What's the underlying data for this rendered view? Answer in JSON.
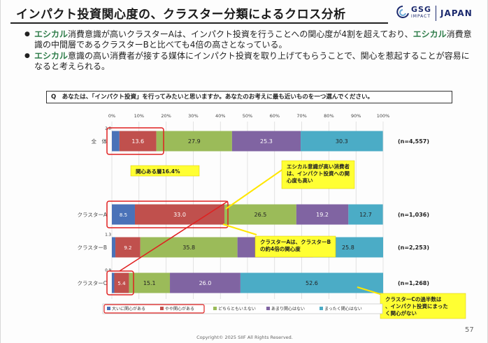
{
  "slide": {
    "title": "インパクト投資関心度の、クラスター分類によるクロス分析",
    "logo_gsg": "GSG",
    "logo_impact": "IMPACT",
    "logo_japan": "JAPAN",
    "bullets": [
      {
        "hl1": "エシカル",
        "t1": "消費意識が高いクラスターAは、インパクト投資を行うことへの関心度が4割を超えており、",
        "hl2": "エシカル",
        "t2": "消費意識の中間層であるクラスターBと比べても4倍の高さとなっている。"
      },
      {
        "hl1": "エシカル",
        "t1": "意識の高い消費者が接する媒体にインパクト投資を取り上げてもらうことで、関心を惹起することが容易になると考えられる。"
      }
    ],
    "question": "Q　あなたは、「インパクト投資」を行ってみたいと思いますか。あなたのお考えに最も近いものを一つ選んでください。",
    "footer": "Copyright© 2025 SIIF All Rights Reserved.",
    "page_number": "57"
  },
  "chart_data": {
    "type": "bar",
    "orientation": "horizontal",
    "stacked": true,
    "xlim": [
      0,
      100
    ],
    "x_ticks": [
      "0%",
      "10%",
      "20%",
      "30%",
      "40%",
      "50%",
      "60%",
      "70%",
      "80%",
      "90%",
      "100%"
    ],
    "categories": [
      "全　体",
      "クラスターA",
      "クラスターB",
      "クラスターC"
    ],
    "n_labels": [
      "(n=4,557)",
      "(n=1,036)",
      "(n=2,253)",
      "(n=1,268)"
    ],
    "series": [
      {
        "name": "大いに関心がある",
        "color": "#4a72b8",
        "values": [
          2.8,
          8.5,
          1.3,
          0.9
        ],
        "labels": [
          "2.8",
          "8.5",
          "1.3",
          "0.9"
        ]
      },
      {
        "name": "やや関心がある",
        "color": "#c0504d",
        "values": [
          13.6,
          33.0,
          9.2,
          5.4
        ],
        "labels": [
          "13.6",
          "33.0",
          "9.2",
          "5.4"
        ]
      },
      {
        "name": "どちらともいえない",
        "color": "#9bbb59",
        "values": [
          27.9,
          26.5,
          35.8,
          15.1
        ],
        "labels": [
          "27.9",
          "26.5",
          "35.8",
          "15.1"
        ]
      },
      {
        "name": "あまり関心はない",
        "color": "#8064a2",
        "values": [
          25.3,
          19.2,
          27.9,
          26.0
        ],
        "labels": [
          "25.3",
          "19.2",
          "",
          "26.0"
        ]
      },
      {
        "name": "まったく関心はない",
        "color": "#4bacc6",
        "values": [
          30.3,
          12.7,
          25.8,
          52.6
        ],
        "labels": [
          "30.3",
          "12.7",
          "25.8",
          "52.6"
        ]
      }
    ],
    "annotations": [
      "関心ある層16.4%",
      "エシカル意識が高い消費者は、インパクト投資への関心度も高い",
      "クラスターAは、クラスターBの約4倍の関心度",
      "クラスターCの過半数は、インパクト投資にまったく関心がない"
    ]
  }
}
